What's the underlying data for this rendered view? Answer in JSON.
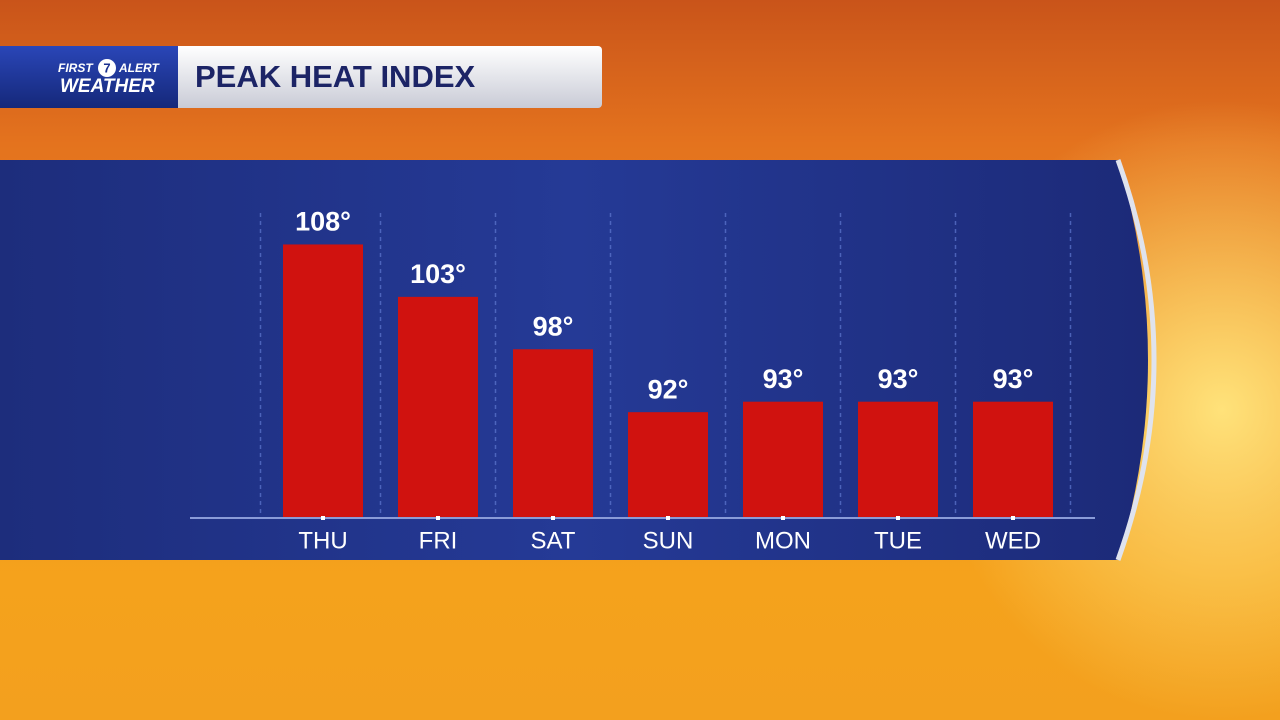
{
  "chart_data": {
    "type": "bar",
    "title": "PEAK HEAT INDEX",
    "brand": [
      "FIRST",
      "7",
      "ALERT",
      "WEATHER"
    ],
    "categories": [
      "THU",
      "FRI",
      "SAT",
      "SUN",
      "MON",
      "TUE",
      "WED"
    ],
    "values": [
      108,
      103,
      98,
      92,
      93,
      93,
      93
    ],
    "value_labels": [
      "108°",
      "103°",
      "98°",
      "92°",
      "93°",
      "93°",
      "93°"
    ],
    "color": "#d0120f",
    "ylim": [
      82,
      111
    ]
  }
}
